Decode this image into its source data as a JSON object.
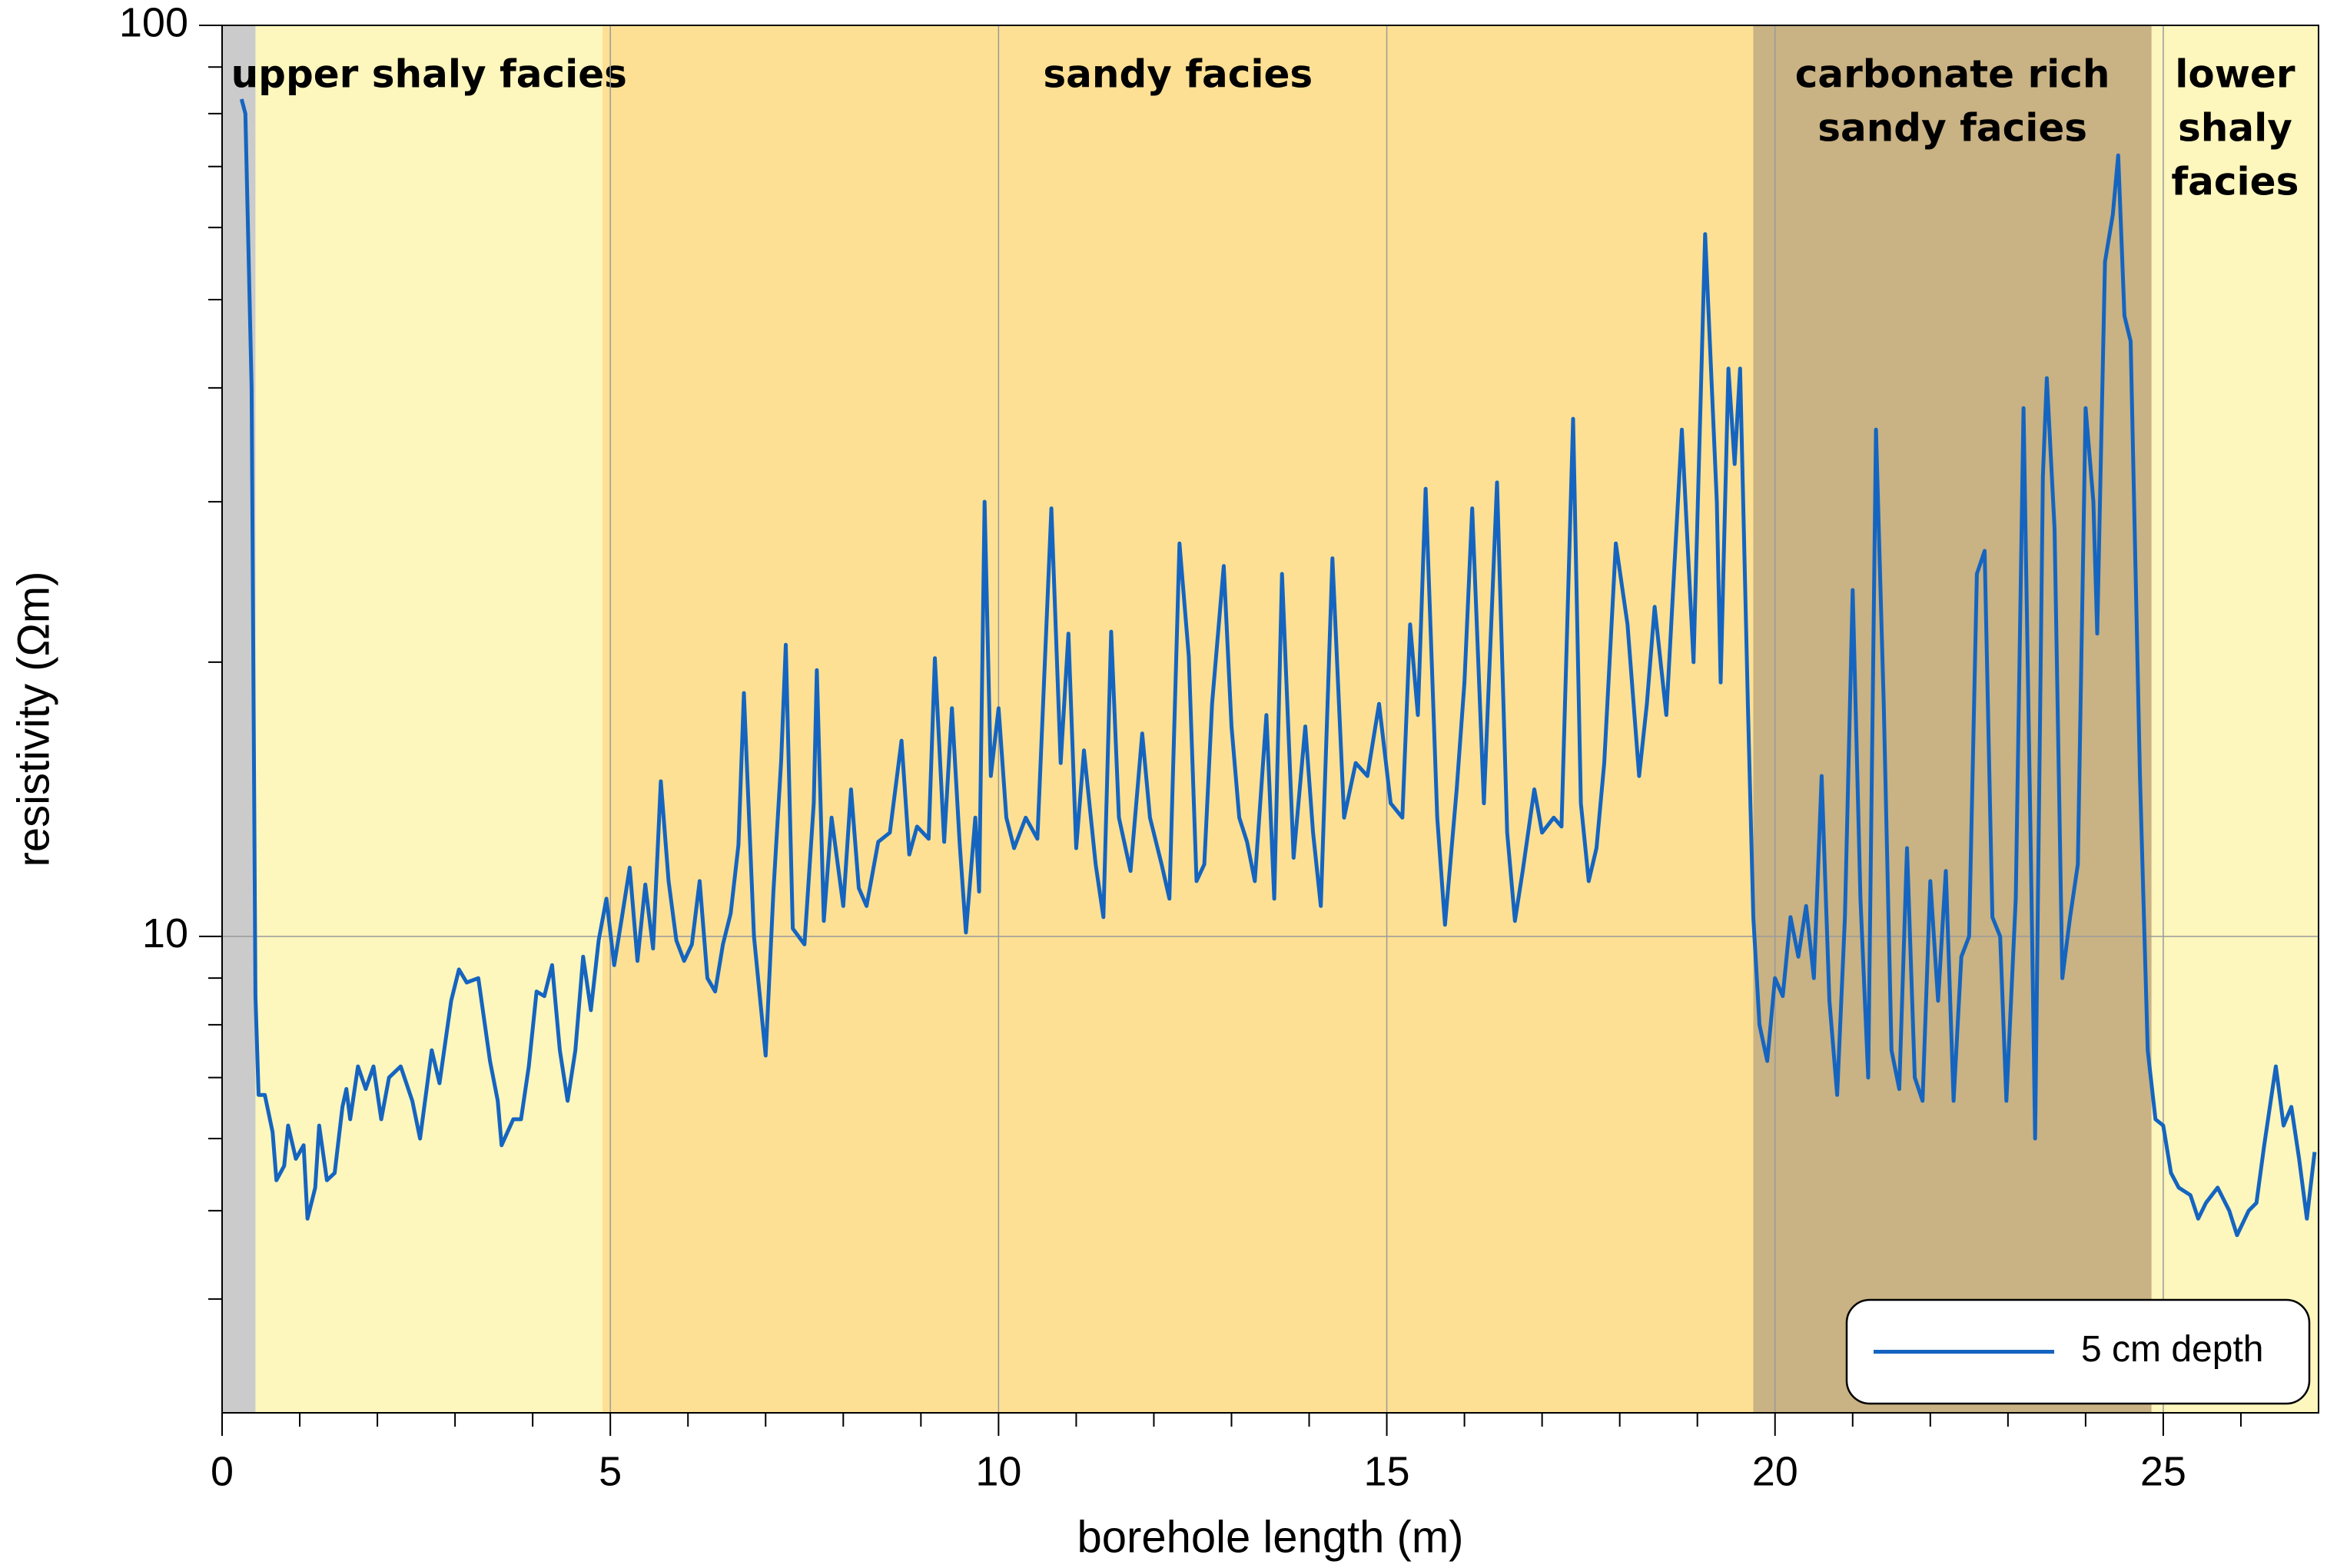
{
  "chart_data": {
    "type": "line",
    "xlabel": "borehole length (m)",
    "ylabel": "resistivity (Ωm)",
    "xlim": [
      0,
      27
    ],
    "xticks": [
      0,
      5,
      10,
      15,
      20,
      25
    ],
    "xminorticks": [
      1,
      2,
      3,
      4,
      6,
      7,
      8,
      9,
      11,
      12,
      13,
      14,
      16,
      17,
      18,
      19,
      21,
      22,
      23,
      24,
      26
    ],
    "ylim": [
      3,
      100
    ],
    "yticks": [
      10,
      100
    ],
    "yminorticks": [
      4,
      5,
      6,
      7,
      8,
      9,
      20,
      30,
      40,
      50,
      60,
      70,
      80,
      90
    ],
    "log_y": true,
    "grid": true,
    "legend": "lower right",
    "bands": [
      {
        "start": 0,
        "end": 0.43,
        "color": "#cbcbcb"
      },
      {
        "label": [
          "upper shaly facies"
        ],
        "start": 0.43,
        "end": 4.9,
        "color": "#fdf6bd"
      },
      {
        "label": [
          "sandy facies"
        ],
        "start": 4.9,
        "end": 19.72,
        "color": "#fde093"
      },
      {
        "label": [
          "carbonate rich",
          "sandy facies"
        ],
        "start": 19.72,
        "end": 24.85,
        "color": "#c9b283"
      },
      {
        "label": [
          "lower",
          "shaly",
          "facies"
        ],
        "start": 24.85,
        "end": 27,
        "color": "#fdf6bd"
      }
    ],
    "x": [
      0.25,
      0.3,
      0.38,
      0.43,
      0.47,
      0.55,
      0.65,
      0.7,
      0.8,
      0.85,
      0.95,
      1.05,
      1.1,
      1.2,
      1.25,
      1.35,
      1.45,
      1.55,
      1.6,
      1.65,
      1.75,
      1.85,
      1.95,
      2.05,
      2.15,
      2.3,
      2.45,
      2.55,
      2.7,
      2.8,
      2.95,
      3.05,
      3.15,
      3.3,
      3.45,
      3.55,
      3.6,
      3.75,
      3.85,
      3.95,
      4.05,
      4.15,
      4.25,
      4.35,
      4.45,
      4.55,
      4.65,
      4.75,
      4.85,
      4.95,
      5.05,
      5.15,
      5.25,
      5.35,
      5.45,
      5.55,
      5.65,
      5.75,
      5.85,
      5.95,
      6.05,
      6.15,
      6.25,
      6.35,
      6.45,
      6.55,
      6.65,
      6.72,
      6.85,
      7.0,
      7.1,
      7.2,
      7.26,
      7.35,
      7.5,
      7.62,
      7.66,
      7.75,
      7.85,
      8.0,
      8.1,
      8.2,
      8.3,
      8.45,
      8.6,
      8.75,
      8.85,
      8.95,
      9.1,
      9.18,
      9.3,
      9.4,
      9.5,
      9.58,
      9.7,
      9.75,
      9.82,
      9.9,
      10.0,
      10.1,
      10.2,
      10.35,
      10.5,
      10.68,
      10.8,
      10.9,
      11.0,
      11.1,
      11.25,
      11.35,
      11.45,
      11.55,
      11.7,
      11.85,
      11.95,
      12.1,
      12.2,
      12.33,
      12.45,
      12.55,
      12.65,
      12.75,
      12.9,
      13.0,
      13.1,
      13.2,
      13.3,
      13.45,
      13.55,
      13.65,
      13.8,
      13.95,
      14.05,
      14.15,
      14.3,
      14.45,
      14.6,
      14.75,
      14.9,
      15.05,
      15.2,
      15.3,
      15.4,
      15.5,
      15.65,
      15.75,
      15.9,
      16.0,
      16.1,
      16.25,
      16.42,
      16.55,
      16.65,
      16.75,
      16.9,
      17.0,
      17.15,
      17.25,
      17.4,
      17.5,
      17.6,
      17.7,
      17.8,
      17.95,
      18.1,
      18.25,
      18.35,
      18.45,
      18.6,
      18.8,
      18.95,
      19.1,
      19.25,
      19.3,
      19.4,
      19.48,
      19.55,
      19.65,
      19.72,
      19.8,
      19.9,
      20.0,
      20.1,
      20.2,
      20.3,
      20.4,
      20.5,
      20.6,
      20.7,
      20.8,
      20.9,
      21.0,
      21.1,
      21.2,
      21.3,
      21.4,
      21.5,
      21.6,
      21.7,
      21.8,
      21.9,
      22.0,
      22.1,
      22.2,
      22.3,
      22.4,
      22.5,
      22.6,
      22.7,
      22.8,
      22.9,
      22.98,
      23.1,
      23.2,
      23.3,
      23.35,
      23.45,
      23.5,
      23.6,
      23.7,
      23.8,
      23.9,
      24.0,
      24.1,
      24.15,
      24.25,
      24.35,
      24.42,
      24.5,
      24.58,
      24.7,
      24.8,
      24.9,
      25.0,
      25.1,
      25.2,
      25.35,
      25.45,
      25.55,
      25.7,
      25.85,
      25.95,
      26.1,
      26.2,
      26.3,
      26.45,
      26.55,
      26.65,
      26.75,
      26.85,
      26.95
    ],
    "series": [
      {
        "name": "5 cm depth",
        "color": "#1565c0",
        "values": [
          83,
          80,
          40,
          8.6,
          6.7,
          6.7,
          6.1,
          5.4,
          5.6,
          6.2,
          5.7,
          5.9,
          4.9,
          5.3,
          6.2,
          5.4,
          5.5,
          6.5,
          6.8,
          6.3,
          7.2,
          6.8,
          7.2,
          6.3,
          7.0,
          7.2,
          6.6,
          6.0,
          7.5,
          6.9,
          8.5,
          9.2,
          8.9,
          9.0,
          7.3,
          6.6,
          5.9,
          6.3,
          6.3,
          7.2,
          8.7,
          8.6,
          9.3,
          7.5,
          6.6,
          7.5,
          9.5,
          8.3,
          9.9,
          11.0,
          9.3,
          10.5,
          11.9,
          9.4,
          11.4,
          9.7,
          14.8,
          11.5,
          9.9,
          9.4,
          9.8,
          11.5,
          9.0,
          8.7,
          9.8,
          10.6,
          12.6,
          18.5,
          10.0,
          7.4,
          11.2,
          15.6,
          20.9,
          10.2,
          9.8,
          14.0,
          19.6,
          10.4,
          13.5,
          10.8,
          14.5,
          11.3,
          10.8,
          12.7,
          13.0,
          16.4,
          12.3,
          13.2,
          12.8,
          20.2,
          12.7,
          17.8,
          12.6,
          10.1,
          13.5,
          11.2,
          30.0,
          15.0,
          17.8,
          13.5,
          12.5,
          13.5,
          12.8,
          29.5,
          15.5,
          21.5,
          12.5,
          16.0,
          12.0,
          10.5,
          21.6,
          13.5,
          11.8,
          16.7,
          13.5,
          12.0,
          11.0,
          27.0,
          20.3,
          11.5,
          12.0,
          18.0,
          25.5,
          17.0,
          13.5,
          12.7,
          11.5,
          17.5,
          11.0,
          25.0,
          12.2,
          17.0,
          13.0,
          10.8,
          26.0,
          13.5,
          15.5,
          15.0,
          18.0,
          14.0,
          13.5,
          22.0,
          17.5,
          31.0,
          13.5,
          10.3,
          14.5,
          19.0,
          29.5,
          14.0,
          31.5,
          13.0,
          10.4,
          11.8,
          14.5,
          13.0,
          13.5,
          13.2,
          37.0,
          14.0,
          11.5,
          12.5,
          15.5,
          27.0,
          22.0,
          15.0,
          18.0,
          23.0,
          17.5,
          36.0,
          20.0,
          59.0,
          30.0,
          19.0,
          42.0,
          33.0,
          42.0,
          18.0,
          10.5,
          8.0,
          7.3,
          9.0,
          8.6,
          10.5,
          9.5,
          10.8,
          9.0,
          15.0,
          8.5,
          6.7,
          10.5,
          24.0,
          11.0,
          7.0,
          36.0,
          18.0,
          7.5,
          6.8,
          12.5,
          7.0,
          6.6,
          11.5,
          8.5,
          11.8,
          6.6,
          9.5,
          10.0,
          25.0,
          26.5,
          10.5,
          10.0,
          6.6,
          11.0,
          38.0,
          11.5,
          6.0,
          32.0,
          41.0,
          28.0,
          9.0,
          10.5,
          12.0,
          38.0,
          30.0,
          21.5,
          55.0,
          62.0,
          72.0,
          48.0,
          45.0,
          15.0,
          7.5,
          6.3,
          6.2,
          5.5,
          5.3,
          5.2,
          4.9,
          5.1,
          5.3,
          5.0,
          4.7,
          5.0,
          5.1,
          5.9,
          7.2,
          6.2,
          6.5,
          5.7,
          4.9,
          5.8
        ]
      }
    ]
  }
}
